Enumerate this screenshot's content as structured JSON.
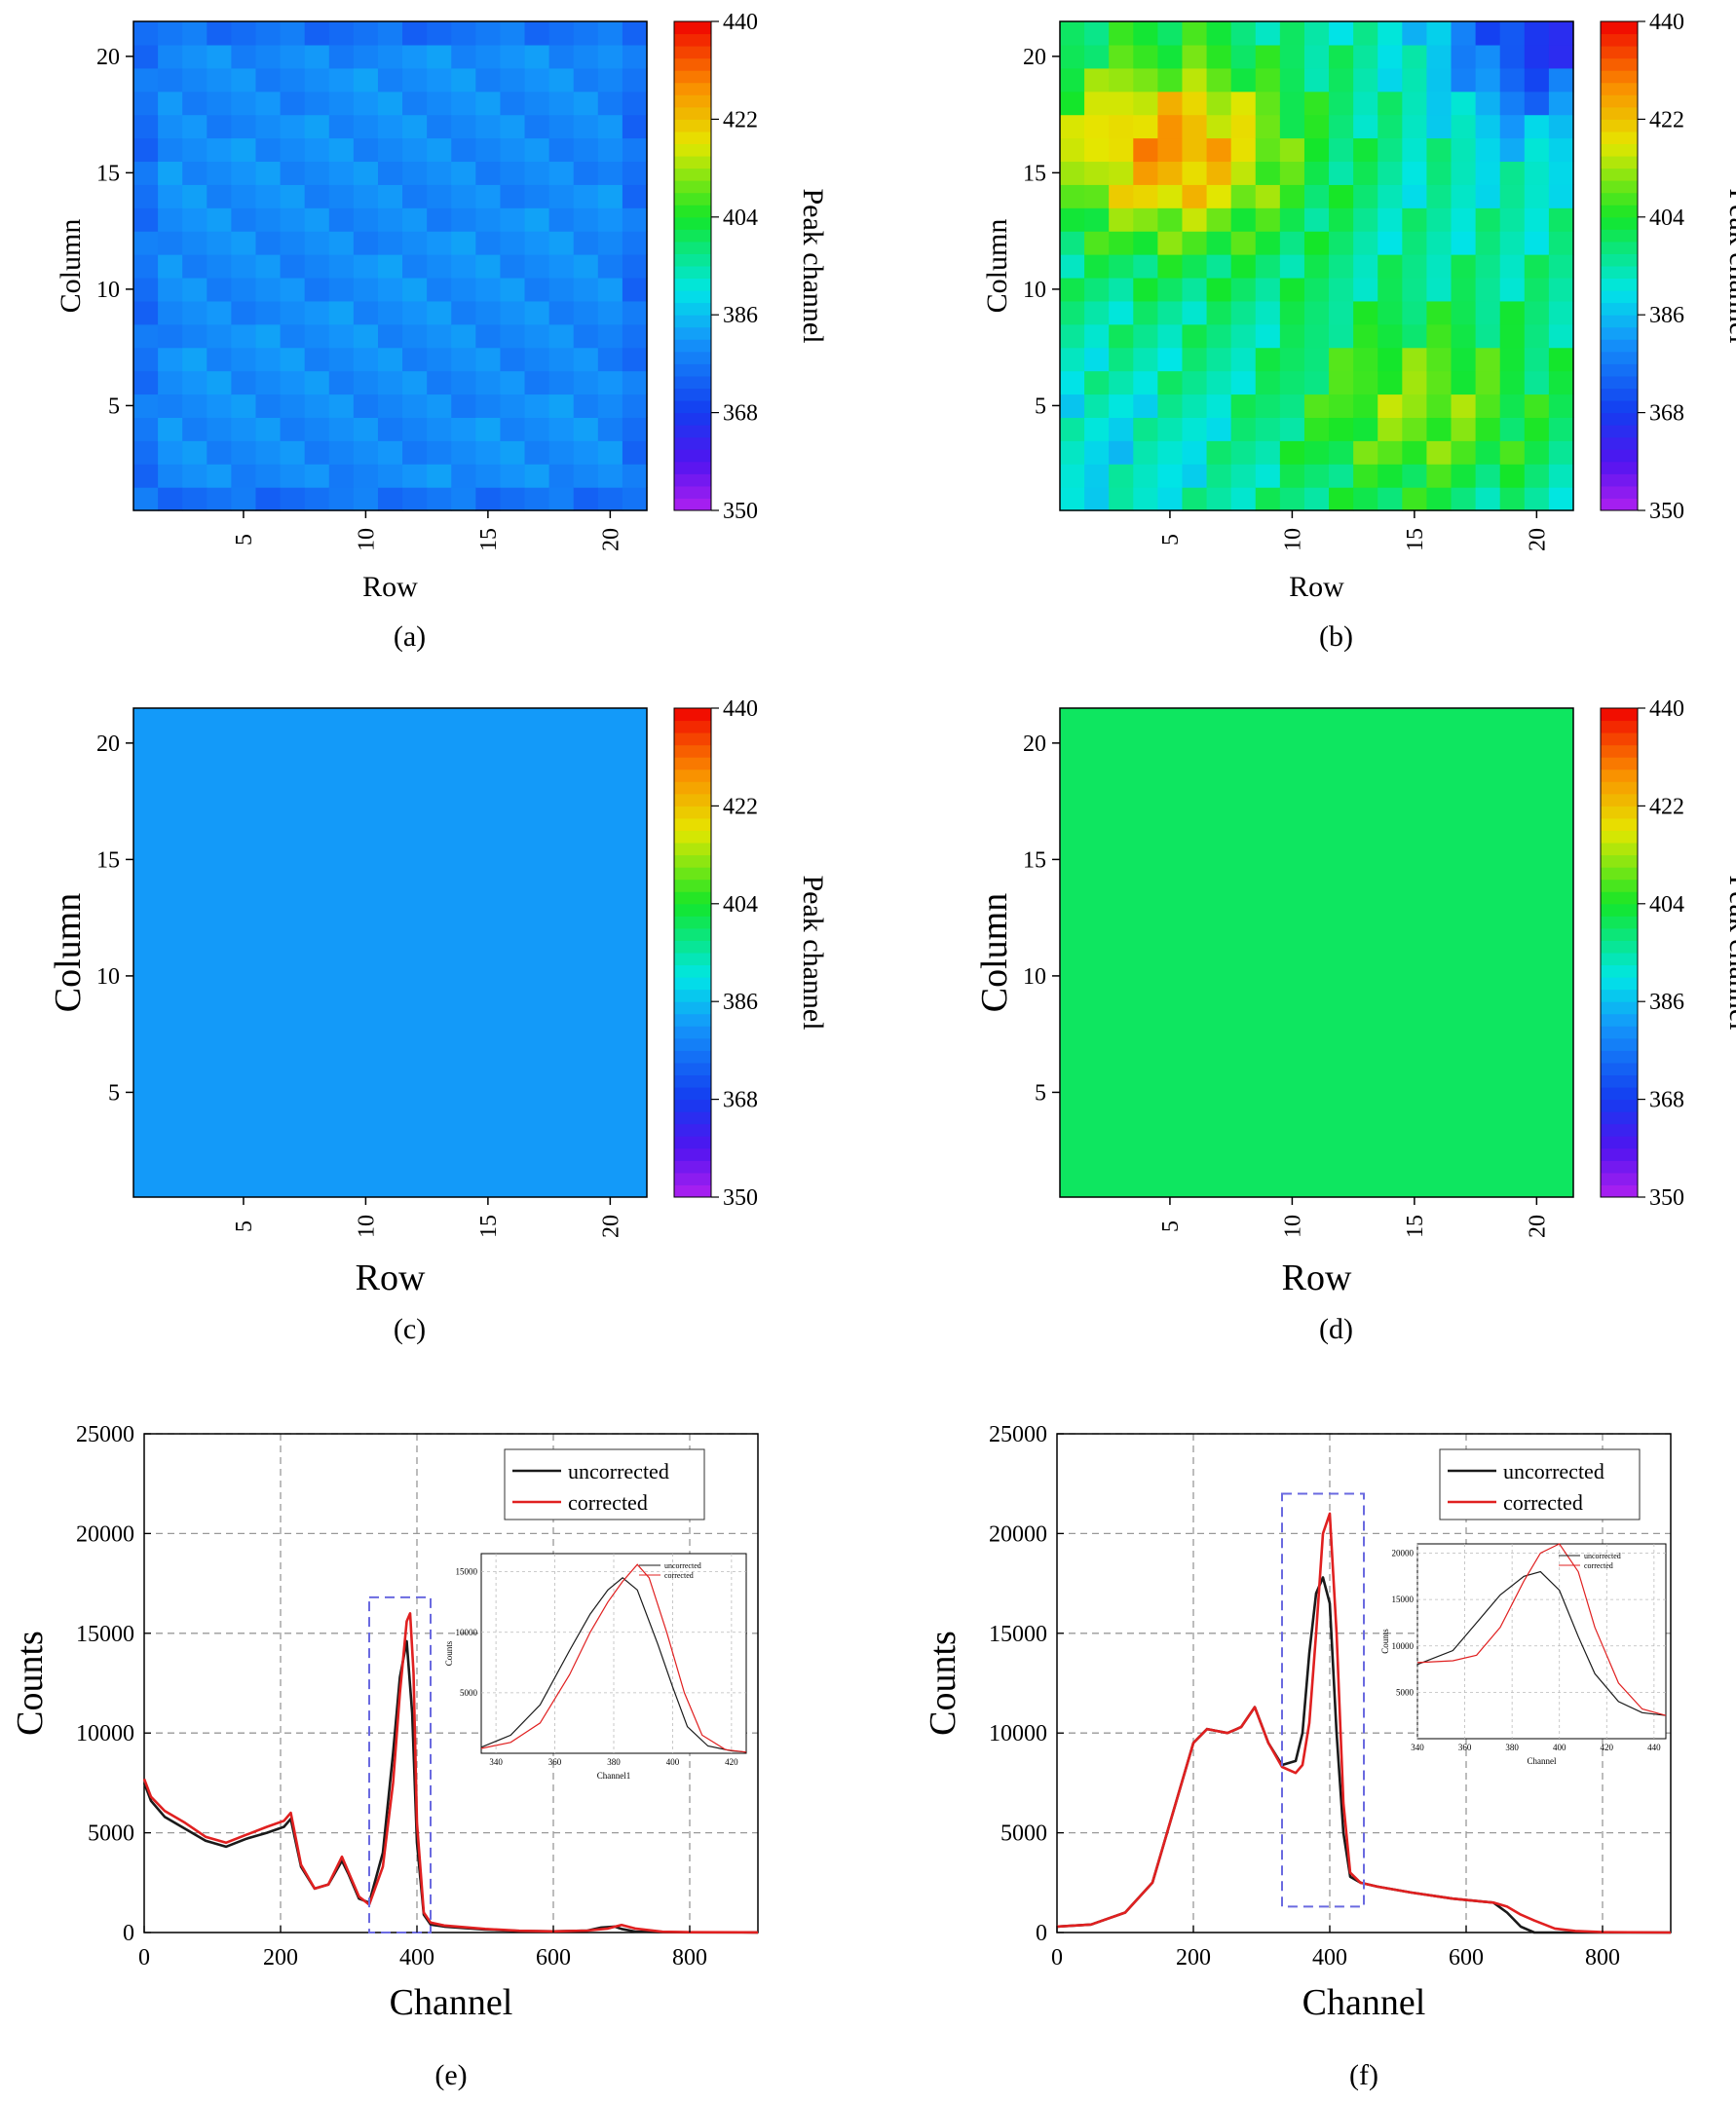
{
  "captions": [
    "(a)",
    "(b)",
    "(c)",
    "(d)",
    "(e)",
    "(f)"
  ],
  "colors": {
    "uncorrected": "#1a1a1a",
    "corrected": "#e02020",
    "dashed_box": "#6a6ae0",
    "grid": "#999999"
  },
  "chart_data": [
    {
      "type": "heatmap",
      "panel": "(a)",
      "xlabel": "Row",
      "ylabel": "Column",
      "colorbar_label": "Peak channel",
      "x_ticks": [
        5,
        10,
        15,
        20
      ],
      "y_ticks": [
        5,
        10,
        15,
        20
      ],
      "xlim": [
        0.5,
        21.5
      ],
      "ylim": [
        0.5,
        21.5
      ],
      "colorbar_ticks": [
        350,
        368,
        386,
        404,
        422,
        440
      ],
      "zlim": [
        350,
        440
      ],
      "grid_size": [
        21,
        21
      ],
      "value_summary": "approximately uniform, 375-384, edge cells near 375-377, interior near 380-383"
    },
    {
      "type": "heatmap",
      "panel": "(b)",
      "xlabel": "Row",
      "ylabel": "Column",
      "colorbar_label": "Peak channel",
      "x_ticks": [
        5,
        10,
        15,
        20
      ],
      "y_ticks": [
        5,
        10,
        15,
        20
      ],
      "xlim": [
        0.5,
        21.5
      ],
      "ylim": [
        0.5,
        21.5
      ],
      "colorbar_ticks": [
        350,
        368,
        386,
        404,
        422,
        440
      ],
      "zlim": [
        350,
        440
      ],
      "grid_size": [
        21,
        21
      ],
      "value_summary": "non-uniform: ~425-435 at upper-left (rows 1-9, columns 14-19), ~365-372 at upper-right, ~405-418 at lower-right (rows 10-20, columns 3-9), ~388-398 at bottom-left"
    },
    {
      "type": "heatmap",
      "panel": "(c)",
      "xlabel": "Row",
      "ylabel": "Column",
      "colorbar_label": "Peak channel",
      "x_ticks": [
        5,
        10,
        15,
        20
      ],
      "y_ticks": [
        5,
        10,
        15,
        20
      ],
      "xlim": [
        0.5,
        21.5
      ],
      "ylim": [
        0.5,
        21.5
      ],
      "colorbar_ticks": [
        350,
        368,
        386,
        404,
        422,
        440
      ],
      "zlim": [
        350,
        440
      ],
      "uniform_value": 382
    },
    {
      "type": "heatmap",
      "panel": "(d)",
      "xlabel": "Row",
      "ylabel": "Column",
      "colorbar_label": "Peak channel",
      "x_ticks": [
        5,
        10,
        15,
        20
      ],
      "y_ticks": [
        5,
        10,
        15,
        20
      ],
      "xlim": [
        0.5,
        21.5
      ],
      "ylim": [
        0.5,
        21.5
      ],
      "colorbar_ticks": [
        350,
        368,
        386,
        404,
        422,
        440
      ],
      "zlim": [
        350,
        440
      ],
      "uniform_value": 400
    },
    {
      "type": "line",
      "panel": "(e)",
      "xlabel": "Channel",
      "ylabel": "Counts",
      "xlim": [
        0,
        900
      ],
      "ylim": [
        0,
        25000
      ],
      "x_ticks": [
        0,
        200,
        400,
        600,
        800
      ],
      "y_ticks": [
        0,
        5000,
        10000,
        15000,
        20000,
        25000
      ],
      "grid": true,
      "legend": "top-right",
      "series": [
        {
          "name": "uncorrected",
          "x": [
            0,
            10,
            30,
            60,
            90,
            120,
            150,
            180,
            205,
            215,
            230,
            250,
            270,
            290,
            300,
            315,
            330,
            350,
            365,
            375,
            385,
            393,
            400,
            410,
            420,
            440,
            500,
            550,
            600,
            650,
            670,
            690,
            700,
            720,
            760,
            800,
            900
          ],
          "y": [
            7500,
            6600,
            5800,
            5200,
            4600,
            4300,
            4700,
            5000,
            5300,
            5700,
            3300,
            2200,
            2400,
            3600,
            2900,
            1700,
            1500,
            4000,
            9000,
            12800,
            14600,
            11000,
            4500,
            900,
            400,
            300,
            150,
            80,
            60,
            100,
            250,
            300,
            180,
            50,
            20,
            10,
            5
          ]
        },
        {
          "name": "corrected",
          "x": [
            0,
            10,
            30,
            60,
            90,
            120,
            150,
            180,
            205,
            215,
            230,
            250,
            270,
            290,
            300,
            315,
            330,
            350,
            365,
            375,
            385,
            390,
            395,
            400,
            410,
            420,
            440,
            500,
            550,
            600,
            650,
            680,
            700,
            720,
            760,
            800,
            900
          ],
          "y": [
            7700,
            6800,
            6100,
            5500,
            4800,
            4500,
            4900,
            5300,
            5600,
            6000,
            3400,
            2200,
            2400,
            3800,
            3000,
            1800,
            1400,
            3300,
            7500,
            12000,
            15600,
            16000,
            13000,
            5500,
            1000,
            500,
            350,
            180,
            90,
            60,
            100,
            200,
            380,
            200,
            40,
            15,
            5
          ]
        }
      ],
      "inset": {
        "xlabel": "Channel1",
        "ylabel": "Counts",
        "xlim": [
          335,
          425
        ],
        "ylim": [
          0,
          16500
        ],
        "x_ticks": [
          340,
          360,
          380,
          400,
          420
        ],
        "y_ticks": [
          5000,
          10000,
          15000
        ],
        "legend": [
          "uncorrected",
          "corrected"
        ],
        "series": [
          {
            "name": "uncorrected",
            "x": [
              335,
              345,
              355,
              365,
              372,
              378,
              383,
              388,
              395,
              400,
              405,
              412,
              420,
              425
            ],
            "y": [
              500,
              1500,
              4000,
              8500,
              11500,
              13500,
              14500,
              13500,
              9000,
              5500,
              2200,
              600,
              200,
              100
            ]
          },
          {
            "name": "corrected",
            "x": [
              335,
              345,
              355,
              365,
              372,
              378,
              383,
              388,
              392,
              398,
              404,
              410,
              418,
              425
            ],
            "y": [
              400,
              900,
              2500,
              6500,
              10000,
              12500,
              14200,
              15600,
              14500,
              10000,
              5000,
              1500,
              300,
              100
            ]
          }
        ]
      }
    },
    {
      "type": "line",
      "panel": "(f)",
      "xlabel": "Channel",
      "ylabel": "Counts",
      "xlim": [
        0,
        900
      ],
      "ylim": [
        0,
        25000
      ],
      "x_ticks": [
        0,
        200,
        400,
        600,
        800
      ],
      "y_ticks": [
        0,
        5000,
        10000,
        15000,
        20000,
        25000
      ],
      "grid": true,
      "legend": "top-right",
      "series": [
        {
          "name": "uncorrected",
          "x": [
            0,
            50,
            100,
            140,
            170,
            200,
            220,
            250,
            270,
            290,
            310,
            330,
            350,
            360,
            370,
            380,
            390,
            400,
            410,
            420,
            430,
            445,
            470,
            520,
            580,
            640,
            660,
            680,
            700,
            720,
            800,
            900
          ],
          "y": [
            300,
            400,
            1000,
            2500,
            6000,
            9500,
            10200,
            10000,
            10300,
            11300,
            9500,
            8400,
            8600,
            10000,
            14000,
            17000,
            17800,
            16500,
            10000,
            5000,
            2800,
            2500,
            2300,
            2000,
            1700,
            1500,
            1000,
            300,
            0,
            0,
            0,
            0
          ]
        },
        {
          "name": "corrected",
          "x": [
            0,
            50,
            100,
            140,
            170,
            200,
            220,
            250,
            270,
            290,
            310,
            330,
            350,
            360,
            370,
            380,
            390,
            400,
            410,
            420,
            430,
            445,
            470,
            520,
            580,
            640,
            660,
            680,
            700,
            730,
            760,
            800,
            900
          ],
          "y": [
            300,
            400,
            1000,
            2500,
            6000,
            9500,
            10200,
            10000,
            10300,
            11300,
            9500,
            8300,
            8000,
            8400,
            10500,
            15000,
            20000,
            21000,
            15000,
            6500,
            3000,
            2500,
            2300,
            2000,
            1700,
            1500,
            1300,
            900,
            600,
            200,
            80,
            20,
            0
          ]
        }
      ],
      "inset": {
        "xlabel": "Channel",
        "ylabel": "Counts",
        "xlim": [
          340,
          445
        ],
        "ylim": [
          0,
          21000
        ],
        "x_ticks": [
          340,
          360,
          380,
          400,
          420,
          440
        ],
        "y_ticks": [
          5000,
          10000,
          15000,
          20000
        ],
        "legend": [
          "uncorrected",
          "corrected"
        ],
        "series": [
          {
            "name": "uncorrected",
            "x": [
              340,
              355,
              365,
              375,
              385,
              392,
              400,
              408,
              415,
              425,
              435,
              445
            ],
            "y": [
              8000,
              9500,
              12500,
              15500,
              17500,
              18000,
              16000,
              11000,
              7000,
              4000,
              2800,
              2500
            ]
          },
          {
            "name": "corrected",
            "x": [
              340,
              355,
              365,
              375,
              385,
              392,
              400,
              408,
              415,
              425,
              435,
              445
            ],
            "y": [
              8200,
              8400,
              9000,
              12000,
              17000,
              20000,
              21000,
              18000,
              12000,
              6000,
              3200,
              2500
            ]
          }
        ]
      }
    }
  ]
}
